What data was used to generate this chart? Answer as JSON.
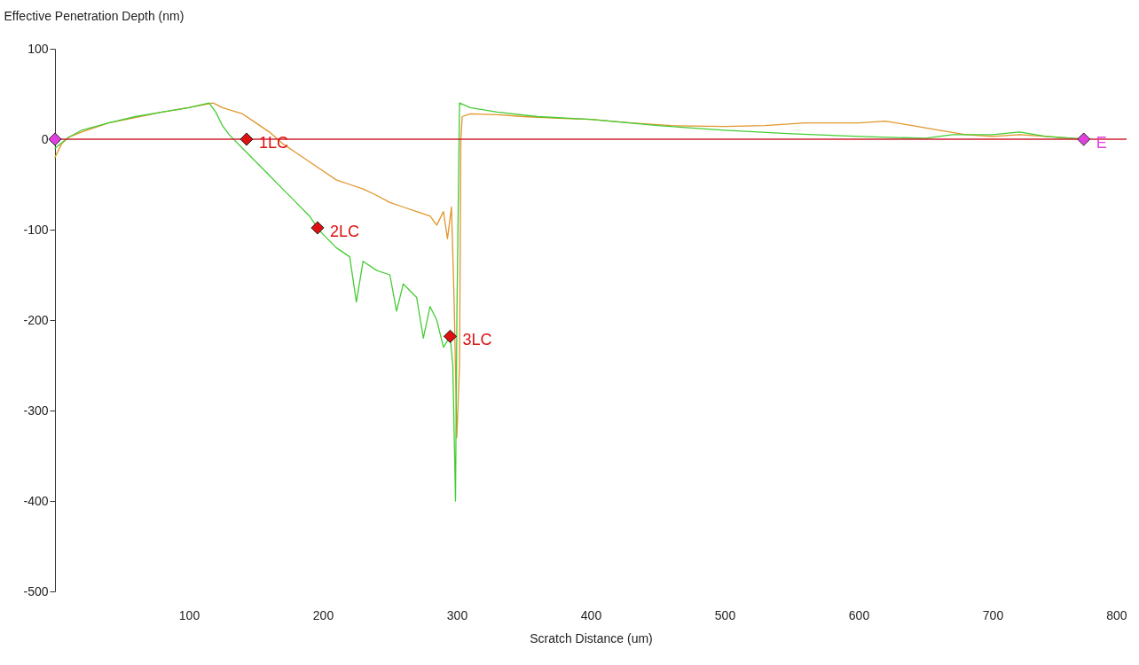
{
  "chart_data": {
    "type": "line",
    "xlabel": "Scratch Distance  (um)",
    "ylabel": "Effective Penetration Depth (nm)",
    "xlim": [
      0,
      800
    ],
    "xticks": [
      100,
      200,
      300,
      400,
      500,
      600,
      700,
      800
    ],
    "ylim": [
      -500,
      100
    ],
    "yticks": [
      -500,
      -400,
      -300,
      -200,
      -100,
      0,
      100
    ],
    "grid": false,
    "line_style": "solid",
    "series": [
      {
        "color": "#e0962a",
        "x": [
          0,
          5,
          10,
          20,
          40,
          60,
          80,
          100,
          118,
          125,
          140,
          150,
          160,
          170,
          180,
          190,
          200,
          210,
          220,
          230,
          240,
          250,
          260,
          270,
          280,
          285,
          290,
          293,
          296,
          298,
          300,
          302,
          303,
          304,
          310,
          330,
          350,
          380,
          400,
          430,
          460,
          500,
          530,
          560,
          600,
          620,
          640,
          660,
          680,
          700,
          720,
          740,
          768
        ],
        "values": [
          -20,
          -5,
          2,
          8,
          18,
          24,
          30,
          35,
          40,
          35,
          28,
          18,
          8,
          -5,
          -15,
          -25,
          -35,
          -45,
          -50,
          -55,
          -62,
          -70,
          -75,
          -80,
          -85,
          -95,
          -80,
          -110,
          -75,
          -180,
          -330,
          -250,
          0,
          25,
          28,
          27,
          25,
          23,
          22,
          18,
          15,
          14,
          15,
          18,
          18,
          20,
          15,
          10,
          5,
          3,
          5,
          3,
          0
        ]
      },
      {
        "color": "#44cc33",
        "x": [
          0,
          10,
          20,
          40,
          60,
          80,
          100,
          115,
          120,
          125,
          130,
          140,
          150,
          160,
          170,
          180,
          190,
          196,
          200,
          210,
          220,
          225,
          230,
          240,
          250,
          255,
          260,
          270,
          275,
          280,
          285,
          290,
          295,
          297,
          299,
          300,
          302,
          310,
          330,
          360,
          400,
          450,
          500,
          550,
          600,
          650,
          670,
          700,
          720,
          740,
          768
        ],
        "values": [
          -10,
          2,
          10,
          18,
          25,
          30,
          35,
          40,
          30,
          15,
          5,
          -10,
          -25,
          -40,
          -55,
          -70,
          -85,
          -98,
          -105,
          -120,
          -130,
          -180,
          -135,
          -145,
          -150,
          -190,
          -160,
          -175,
          -220,
          -185,
          -200,
          -230,
          -218,
          -250,
          -400,
          -200,
          40,
          35,
          30,
          25,
          22,
          15,
          10,
          6,
          3,
          1,
          5,
          5,
          8,
          3,
          0
        ]
      },
      {
        "type": "scatter",
        "marker": "diamond",
        "color": "#dd1111",
        "x": [
          143,
          196,
          295
        ],
        "values": [
          0,
          -98,
          -218
        ]
      },
      {
        "type": "scatter",
        "marker": "diamond",
        "color": "#e040e0",
        "x": [
          0,
          768
        ],
        "values": [
          0,
          0
        ]
      }
    ],
    "ref_lines": [
      {
        "axis": "y",
        "value": 0,
        "color": "#d02030"
      }
    ],
    "annotations": [
      {
        "text": "1LC",
        "x": 143,
        "y": 0
      },
      {
        "text": "2LC",
        "x": 196,
        "y": -98
      },
      {
        "text": "3LC",
        "x": 295,
        "y": -218
      },
      {
        "text": "E",
        "x": 768,
        "y": 0
      }
    ]
  }
}
